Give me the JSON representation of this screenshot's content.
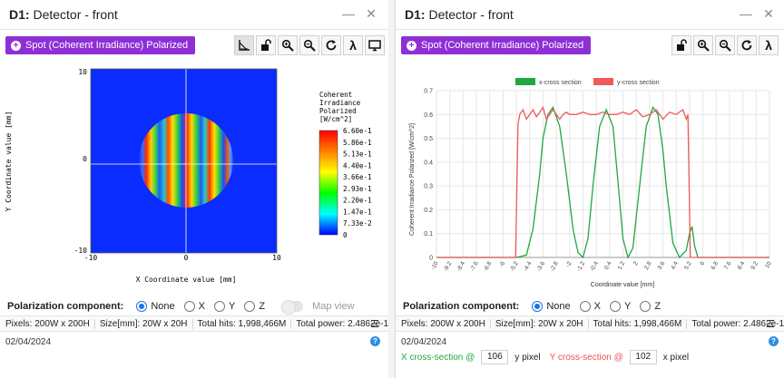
{
  "left": {
    "title_prefix": "D1:",
    "title_name": "Detector - front",
    "spot_button": "Spot (Coherent Irradiance) Polarized",
    "colorbar_title": [
      "Coherent",
      "Irradiance",
      "Polarized",
      "[W/cm^2]"
    ],
    "colorbar_labels": [
      "6.60e-1",
      "5.86e-1",
      "5.13e-1",
      "4.40e-1",
      "3.66e-1",
      "2.93e-1",
      "2.20e-1",
      "1.47e-1",
      "7.33e-2",
      "0"
    ],
    "x_ticks": [
      "-10",
      "0",
      "10"
    ],
    "y_ticks": [
      "10",
      "0",
      "-10"
    ],
    "xlabel": "X Coordinate value [mm]",
    "ylabel": "Y Coordinate value [mm]",
    "map_view": "Map view"
  },
  "right": {
    "title_prefix": "D1:",
    "title_name": "Detector - front",
    "spot_button": "Spot (Coherent Irradiance) Polarized"
  },
  "chart_data": {
    "type": "line",
    "title": "",
    "xlabel": "Coordinate value [mm]",
    "ylabel": "Coherent Irradiance Polarized [W/cm^2]",
    "ylim": [
      0,
      0.7
    ],
    "xlim": [
      -10,
      10
    ],
    "x_ticks": [
      "-10",
      "-9.2",
      "-8.4",
      "-7.6",
      "-6.8",
      "-6",
      "-5.2",
      "-4.4",
      "-3.6",
      "-2.8",
      "-2",
      "-1.2",
      "-0.4",
      "0.4",
      "1.2",
      "2",
      "2.8",
      "3.6",
      "4.4",
      "5.2",
      "6",
      "6.8",
      "7.6",
      "8.4",
      "9.2",
      "10"
    ],
    "y_ticks": [
      "0",
      "0.1",
      "0.2",
      "0.3",
      "0.4",
      "0.5",
      "0.6",
      "0.7"
    ],
    "grid": true,
    "legend": "top",
    "series": [
      {
        "name": "x-cross section",
        "color": "#1fa83f",
        "x": [
          -10,
          -5.2,
          -4.6,
          -4.2,
          -3.8,
          -3.6,
          -3.3,
          -3.0,
          -2.6,
          -2.2,
          -1.8,
          -1.5,
          -1.2,
          -0.9,
          -0.6,
          -0.2,
          0.2,
          0.6,
          0.9,
          1.2,
          1.5,
          1.8,
          2.2,
          2.6,
          3.0,
          3.3,
          3.6,
          3.8,
          4.2,
          4.6,
          5.0,
          5.2,
          5.35,
          5.5,
          5.7,
          10
        ],
        "y": [
          0,
          0,
          0.01,
          0.12,
          0.35,
          0.5,
          0.6,
          0.63,
          0.55,
          0.35,
          0.12,
          0.02,
          0.0,
          0.08,
          0.3,
          0.55,
          0.62,
          0.55,
          0.32,
          0.08,
          0.0,
          0.04,
          0.3,
          0.55,
          0.63,
          0.6,
          0.45,
          0.3,
          0.06,
          0.0,
          0.03,
          0.1,
          0.13,
          0.05,
          0,
          0
        ]
      },
      {
        "name": "y-cross section",
        "color": "#f05a5a",
        "x": [
          -10,
          -5.25,
          -5.1,
          -5.0,
          -4.8,
          -4.6,
          -4.4,
          -4.2,
          -4.0,
          -3.8,
          -3.6,
          -3.4,
          -3.2,
          -3.0,
          -2.8,
          -2.6,
          -2.4,
          -2.2,
          -2.0,
          -1.6,
          -1.2,
          -0.8,
          -0.4,
          0.0,
          0.4,
          0.8,
          1.2,
          1.6,
          2.0,
          2.4,
          2.8,
          3.2,
          3.6,
          4.0,
          4.4,
          4.8,
          5.0,
          5.1,
          5.25,
          10
        ],
        "y": [
          0,
          0,
          0.56,
          0.6,
          0.62,
          0.58,
          0.6,
          0.62,
          0.59,
          0.61,
          0.63,
          0.58,
          0.6,
          0.62,
          0.6,
          0.58,
          0.6,
          0.61,
          0.6,
          0.6,
          0.61,
          0.6,
          0.6,
          0.61,
          0.6,
          0.6,
          0.61,
          0.6,
          0.62,
          0.59,
          0.6,
          0.62,
          0.58,
          0.61,
          0.6,
          0.62,
          0.58,
          0.6,
          0,
          0
        ]
      }
    ]
  },
  "shared": {
    "polarization_label": "Polarization component:",
    "pol_options": [
      "None",
      "X",
      "Y",
      "Z"
    ],
    "pixels": "Pixels: 200W x 200H",
    "size": "Size[mm]: 20W x 20H",
    "hits": "Total hits: 1,998,466M",
    "power": "Total power: 2.4862e-1",
    "date": "02/04/2024",
    "x_cross_label": "X cross-section @",
    "x_cross_value": "106",
    "y_pixel": "y pixel",
    "y_cross_label": "Y cross-section @",
    "y_cross_value": "102",
    "x_pixel": "x pixel",
    "menu_icon": "hamburger-icon",
    "help_icon": "help-icon",
    "lambda": "λ"
  }
}
